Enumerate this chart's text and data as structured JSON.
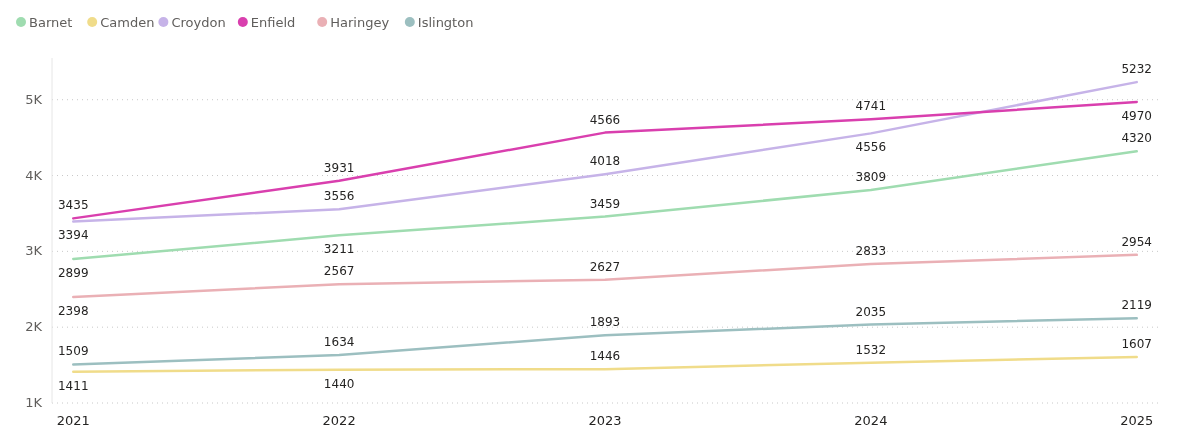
{
  "chart_data": {
    "type": "line",
    "categories": [
      "2021",
      "2022",
      "2023",
      "2024",
      "2025"
    ],
    "series": [
      {
        "name": "Barnet",
        "color": "#9fdcb0",
        "values": [
          2899,
          3211,
          3459,
          3809,
          4320
        ]
      },
      {
        "name": "Camden",
        "color": "#f0dc8a",
        "values": [
          1411,
          1440,
          1446,
          1532,
          1607
        ]
      },
      {
        "name": "Croydon",
        "color": "#c6b3e8",
        "values": [
          3394,
          3556,
          4018,
          4556,
          5232
        ]
      },
      {
        "name": "Enfield",
        "color": "#d93fae",
        "values": [
          3435,
          3931,
          4566,
          4741,
          4970
        ]
      },
      {
        "name": "Haringey",
        "color": "#eab0b5",
        "values": [
          2398,
          2567,
          2627,
          2833,
          2954
        ]
      },
      {
        "name": "Islington",
        "color": "#9cbfc0",
        "values": [
          1509,
          1634,
          1893,
          2035,
          2119
        ]
      }
    ],
    "ylim": [
      1000,
      5550
    ],
    "yticks": [
      {
        "value": 1000,
        "label": "1K"
      },
      {
        "value": 2000,
        "label": "2K"
      },
      {
        "value": 3000,
        "label": "3K"
      },
      {
        "value": 4000,
        "label": "4K"
      },
      {
        "value": 5000,
        "label": "5K"
      }
    ],
    "grid": "y",
    "legend": "top left",
    "data_labels": true,
    "marker": "none",
    "line_style": "solid"
  }
}
